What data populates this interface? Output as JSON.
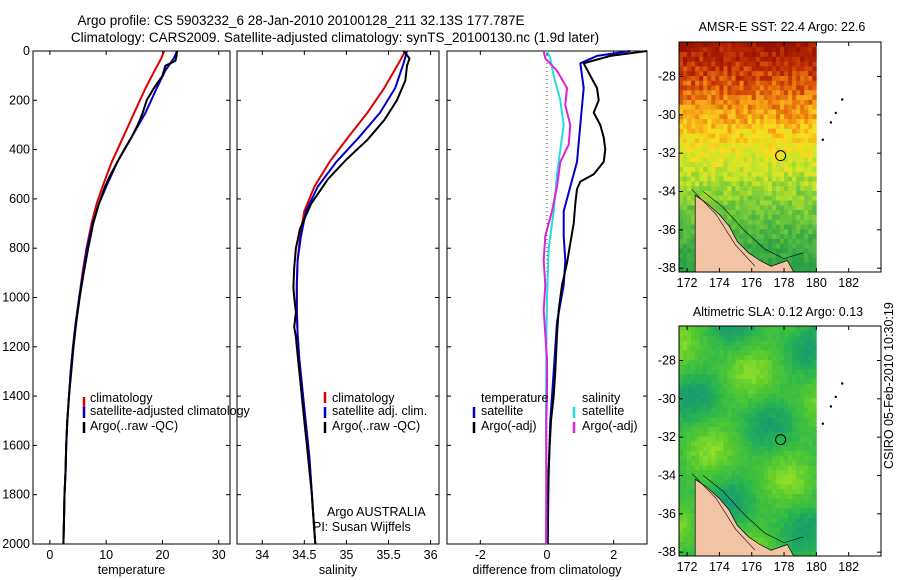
{
  "header": {
    "line1": "Argo profile: CS 5903232_6 28-Jan-2010 20100128_211 32.13S 177.787E",
    "line2": "Climatology: CARS2009. Satellite-adjusted climatology: synTS_20100130.nc (1.9d later)"
  },
  "stamp": "CSIRO 05-Feb-2010 10:30:19",
  "credit": {
    "line1": "Argo AUSTRALIA",
    "line2": "PI: Susan Wijffels"
  },
  "colors": {
    "climatology": "#dd0000",
    "satellite": "#0000cc",
    "argo": "#000000",
    "salinity_sat": "#22dddd",
    "salinity_argo": "#dd22dd",
    "land": "#f2c4a4"
  },
  "chart_data": [
    {
      "id": "temperature",
      "type": "line",
      "xlabel": "temperature",
      "ylabel": "",
      "xlim": [
        -3,
        32
      ],
      "ylim": [
        2000,
        0
      ],
      "y_reversed": true,
      "xticks": [
        0,
        10,
        20,
        30
      ],
      "yticks": [
        0,
        200,
        400,
        600,
        800,
        1000,
        1200,
        1400,
        1600,
        1800,
        2000
      ],
      "legend": [
        "climatology",
        "satellite-adjusted climatology",
        "Argo(..raw -QC)"
      ],
      "series": [
        {
          "name": "climatology",
          "color": "#dd0000",
          "points": [
            [
              20.3,
              0
            ],
            [
              19.8,
              30
            ],
            [
              18.6,
              80
            ],
            [
              17.0,
              150
            ],
            [
              15.0,
              250
            ],
            [
              13.0,
              350
            ],
            [
              11.0,
              450
            ],
            [
              9.5,
              540
            ],
            [
              8.3,
              620
            ],
            [
              7.4,
              700
            ],
            [
              6.5,
              800
            ],
            [
              5.8,
              900
            ],
            [
              5.2,
              1000
            ],
            [
              4.6,
              1100
            ],
            [
              4.1,
              1200
            ],
            [
              3.7,
              1300
            ],
            [
              3.4,
              1400
            ],
            [
              3.1,
              1500
            ],
            [
              2.9,
              1600
            ],
            [
              2.8,
              1700
            ],
            [
              2.6,
              1800
            ],
            [
              2.5,
              1900
            ],
            [
              2.4,
              2000
            ]
          ]
        },
        {
          "name": "satellite-adjusted climatology",
          "color": "#0000cc",
          "points": [
            [
              22.6,
              0
            ],
            [
              22.0,
              30
            ],
            [
              20.5,
              80
            ],
            [
              19.0,
              150
            ],
            [
              17.0,
              250
            ],
            [
              14.5,
              350
            ],
            [
              12.0,
              450
            ],
            [
              10.2,
              540
            ],
            [
              8.7,
              620
            ],
            [
              7.6,
              700
            ],
            [
              6.6,
              800
            ],
            [
              5.9,
              900
            ],
            [
              5.2,
              1000
            ],
            [
              4.6,
              1100
            ],
            [
              4.1,
              1200
            ],
            [
              3.7,
              1300
            ],
            [
              3.4,
              1400
            ],
            [
              3.1,
              1500
            ],
            [
              2.9,
              1600
            ],
            [
              2.8,
              1700
            ],
            [
              2.6,
              1800
            ],
            [
              2.5,
              1900
            ],
            [
              2.4,
              2000
            ]
          ]
        },
        {
          "name": "Argo(..raw -QC)",
          "color": "#000000",
          "points": [
            [
              22.6,
              0
            ],
            [
              22.5,
              20
            ],
            [
              22.3,
              40
            ],
            [
              20.5,
              60
            ],
            [
              20.0,
              100
            ],
            [
              18.5,
              150
            ],
            [
              17.2,
              200
            ],
            [
              16.5,
              250
            ],
            [
              15.6,
              300
            ],
            [
              14.5,
              350
            ],
            [
              13.2,
              400
            ],
            [
              12.0,
              450
            ],
            [
              10.8,
              500
            ],
            [
              9.8,
              550
            ],
            [
              8.7,
              620
            ],
            [
              7.7,
              700
            ],
            [
              6.8,
              800
            ],
            [
              6.0,
              900
            ],
            [
              5.3,
              1000
            ],
            [
              4.7,
              1100
            ],
            [
              4.2,
              1200
            ],
            [
              3.8,
              1300
            ],
            [
              3.4,
              1400
            ],
            [
              3.1,
              1500
            ],
            [
              2.9,
              1600
            ],
            [
              2.8,
              1700
            ],
            [
              2.6,
              1800
            ],
            [
              2.5,
              1900
            ],
            [
              2.4,
              2000
            ]
          ]
        }
      ]
    },
    {
      "id": "salinity",
      "type": "line",
      "xlabel": "salinity",
      "ylabel": "",
      "xlim": [
        33.7,
        36.1
      ],
      "ylim": [
        2000,
        0
      ],
      "y_reversed": true,
      "xticks": [
        34,
        34.5,
        35,
        35.5,
        36
      ],
      "yticks": [
        0,
        200,
        400,
        600,
        800,
        1000,
        1200,
        1400,
        1600,
        1800,
        2000
      ],
      "legend": [
        "climatology",
        "satellite adj. clim.",
        "Argo(..raw -QC)"
      ],
      "series": [
        {
          "name": "climatology",
          "color": "#dd0000",
          "points": [
            [
              35.7,
              0
            ],
            [
              35.62,
              50
            ],
            [
              35.45,
              150
            ],
            [
              35.25,
              250
            ],
            [
              35.02,
              350
            ],
            [
              34.8,
              450
            ],
            [
              34.62,
              550
            ],
            [
              34.5,
              650
            ],
            [
              34.45,
              750
            ],
            [
              34.42,
              850
            ],
            [
              34.41,
              950
            ],
            [
              34.41,
              1050
            ],
            [
              34.42,
              1150
            ],
            [
              34.44,
              1250
            ],
            [
              34.47,
              1350
            ],
            [
              34.5,
              1450
            ],
            [
              34.53,
              1550
            ],
            [
              34.56,
              1650
            ],
            [
              34.58,
              1750
            ],
            [
              34.6,
              1850
            ],
            [
              34.62,
              1950
            ],
            [
              34.63,
              2000
            ]
          ]
        },
        {
          "name": "satellite adj. clim.",
          "color": "#0000cc",
          "points": [
            [
              35.72,
              0
            ],
            [
              35.68,
              50
            ],
            [
              35.58,
              150
            ],
            [
              35.4,
              250
            ],
            [
              35.15,
              350
            ],
            [
              34.88,
              450
            ],
            [
              34.66,
              550
            ],
            [
              34.52,
              650
            ],
            [
              34.46,
              750
            ],
            [
              34.42,
              850
            ],
            [
              34.41,
              950
            ],
            [
              34.41,
              1050
            ],
            [
              34.42,
              1150
            ],
            [
              34.44,
              1250
            ],
            [
              34.47,
              1350
            ],
            [
              34.5,
              1450
            ],
            [
              34.53,
              1550
            ],
            [
              34.56,
              1650
            ],
            [
              34.58,
              1750
            ],
            [
              34.6,
              1850
            ],
            [
              34.62,
              1950
            ],
            [
              34.63,
              2000
            ]
          ]
        },
        {
          "name": "Argo(..raw -QC)",
          "color": "#000000",
          "points": [
            [
              35.68,
              0
            ],
            [
              35.75,
              30
            ],
            [
              35.72,
              60
            ],
            [
              35.7,
              120
            ],
            [
              35.6,
              200
            ],
            [
              35.45,
              280
            ],
            [
              35.25,
              360
            ],
            [
              35.0,
              440
            ],
            [
              34.78,
              520
            ],
            [
              34.58,
              620
            ],
            [
              34.45,
              720
            ],
            [
              34.4,
              800
            ],
            [
              34.38,
              880
            ],
            [
              34.37,
              960
            ],
            [
              34.38,
              1000
            ],
            [
              34.4,
              1060
            ],
            [
              34.38,
              1120
            ],
            [
              34.4,
              1160
            ],
            [
              34.41,
              1200
            ],
            [
              34.44,
              1300
            ],
            [
              34.47,
              1400
            ],
            [
              34.5,
              1500
            ],
            [
              34.53,
              1600
            ],
            [
              34.56,
              1700
            ],
            [
              34.59,
              1800
            ],
            [
              34.61,
              1900
            ],
            [
              34.63,
              2000
            ]
          ]
        }
      ]
    },
    {
      "id": "difference",
      "type": "line",
      "xlabel": "difference from climatology",
      "ylabel": "",
      "xlim": [
        -3,
        3
      ],
      "ylim": [
        2000,
        0
      ],
      "y_reversed": true,
      "xticks": [
        -2,
        0,
        2
      ],
      "yticks": [
        0,
        200,
        400,
        600,
        800,
        1000,
        1200,
        1400,
        1600,
        1800,
        2000
      ],
      "legend_left_title": "temperature",
      "legend_right_title": "salinity",
      "legend_left": [
        "satellite",
        "Argo(-adj)"
      ],
      "legend_right": [
        "satellite",
        "Argo(-adj)"
      ],
      "series": [
        {
          "name": "temperature satellite",
          "color": "#0000cc",
          "points": [
            [
              2.5,
              0
            ],
            [
              1.5,
              20
            ],
            [
              1.0,
              50
            ],
            [
              1.1,
              150
            ],
            [
              1.0,
              300
            ],
            [
              0.9,
              450
            ],
            [
              0.7,
              550
            ],
            [
              0.5,
              650
            ],
            [
              0.5,
              750
            ],
            [
              0.55,
              850
            ],
            [
              0.5,
              950
            ],
            [
              0.3,
              1100
            ],
            [
              0.2,
              1300
            ],
            [
              0.1,
              1500
            ],
            [
              0.05,
              1700
            ],
            [
              0.02,
              2000
            ]
          ]
        },
        {
          "name": "temperature Argo(-adj)",
          "color": "#000000",
          "points": [
            [
              3.0,
              0
            ],
            [
              1.9,
              20
            ],
            [
              1.1,
              50
            ],
            [
              1.3,
              100
            ],
            [
              1.5,
              150
            ],
            [
              1.55,
              200
            ],
            [
              1.4,
              250
            ],
            [
              1.6,
              300
            ],
            [
              1.7,
              350
            ],
            [
              1.75,
              400
            ],
            [
              1.7,
              450
            ],
            [
              1.4,
              500
            ],
            [
              1.0,
              530
            ],
            [
              0.9,
              560
            ],
            [
              0.85,
              620
            ],
            [
              0.8,
              700
            ],
            [
              0.7,
              780
            ],
            [
              0.6,
              860
            ],
            [
              0.45,
              950
            ],
            [
              0.35,
              1050
            ],
            [
              0.3,
              1150
            ],
            [
              0.25,
              1300
            ],
            [
              0.2,
              1400
            ],
            [
              0.12,
              1500
            ],
            [
              0.08,
              1600
            ],
            [
              0.05,
              1700
            ],
            [
              0.03,
              1800
            ],
            [
              0.02,
              2000
            ]
          ]
        },
        {
          "name": "salinity satellite",
          "color": "#22dddd",
          "points": [
            [
              0.0,
              0
            ],
            [
              0.1,
              30
            ],
            [
              0.2,
              100
            ],
            [
              0.4,
              200
            ],
            [
              0.5,
              300
            ],
            [
              0.4,
              400
            ],
            [
              0.3,
              500
            ],
            [
              0.2,
              650
            ],
            [
              0.05,
              800
            ],
            [
              0.0,
              1000
            ],
            [
              -0.02,
              1200
            ],
            [
              -0.03,
              1500
            ],
            [
              -0.02,
              1800
            ],
            [
              -0.02,
              2000
            ]
          ]
        },
        {
          "name": "salinity Argo(-adj)",
          "color": "#dd22dd",
          "points": [
            [
              -0.1,
              0
            ],
            [
              -0.05,
              30
            ],
            [
              0.3,
              80
            ],
            [
              0.6,
              150
            ],
            [
              0.55,
              220
            ],
            [
              0.7,
              300
            ],
            [
              0.65,
              380
            ],
            [
              0.4,
              450
            ],
            [
              0.3,
              550
            ],
            [
              0.15,
              650
            ],
            [
              -0.05,
              750
            ],
            [
              -0.1,
              850
            ],
            [
              -0.05,
              950
            ],
            [
              -0.1,
              1050
            ],
            [
              -0.05,
              1150
            ],
            [
              0.0,
              1250
            ],
            [
              0.0,
              1400
            ],
            [
              -0.02,
              1500
            ],
            [
              -0.02,
              1600
            ],
            [
              -0.02,
              1800
            ],
            [
              -0.03,
              2000
            ]
          ]
        }
      ]
    },
    {
      "id": "sst_map",
      "type": "heatmap",
      "title": "AMSR-E SST: 22.4 Argo: 22.6",
      "xlim": [
        171.5,
        184
      ],
      "ylim": [
        -38.2,
        -26.2
      ],
      "xticks": [
        172,
        174,
        176,
        178,
        180,
        182
      ],
      "yticks": [
        -28,
        -30,
        -32,
        -34,
        -36,
        -38
      ],
      "marker": [
        177.787,
        -32.13
      ]
    },
    {
      "id": "sla_map",
      "type": "heatmap",
      "title": "Altimetric SLA: 0.12 Argo: 0.13",
      "xlim": [
        171.5,
        184
      ],
      "ylim": [
        -38.2,
        -26.2
      ],
      "xticks": [
        172,
        174,
        176,
        178,
        180,
        182
      ],
      "yticks": [
        -28,
        -30,
        -32,
        -34,
        -36,
        -38
      ],
      "marker": [
        177.787,
        -32.13
      ]
    }
  ]
}
